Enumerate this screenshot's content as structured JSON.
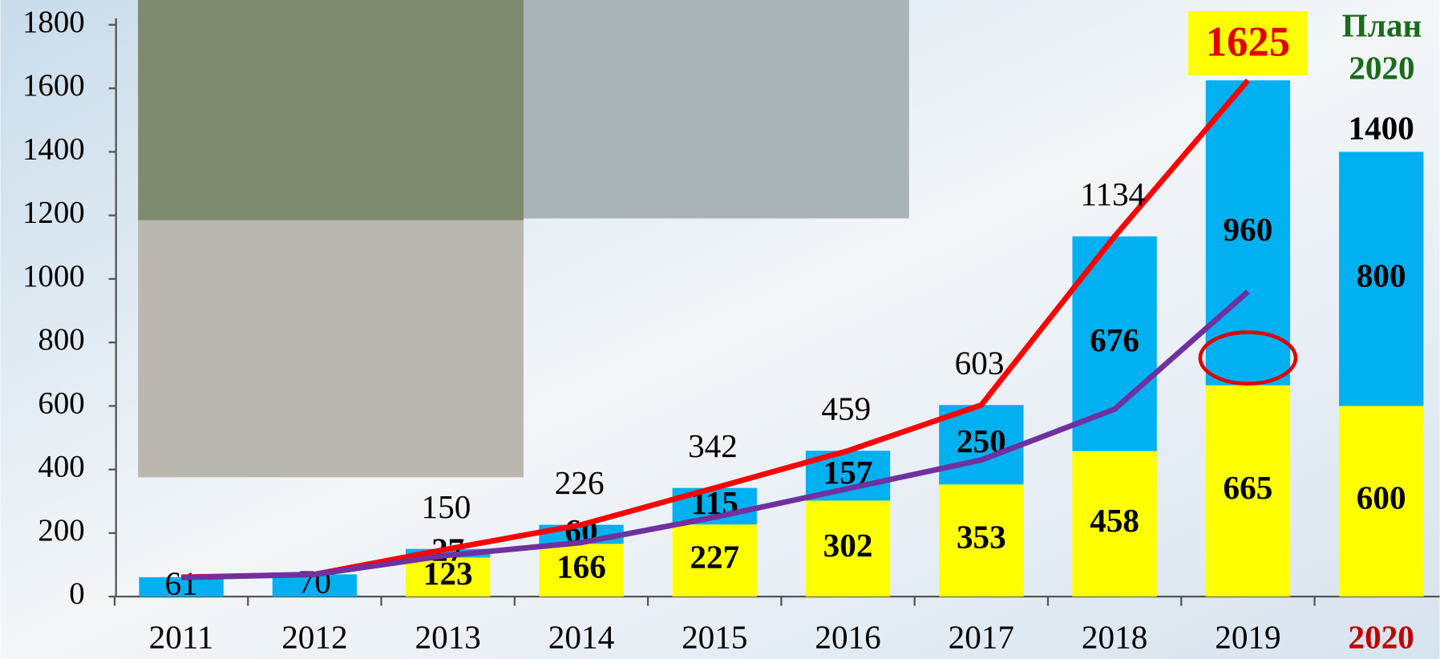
{
  "chart_data": {
    "type": "bar",
    "categories": [
      "2011",
      "2012",
      "2013",
      "2014",
      "2015",
      "2016",
      "2017",
      "2018",
      "2019",
      "2020"
    ],
    "series": [
      {
        "color": "#ffff00",
        "values": [
          null,
          null,
          123,
          166,
          227,
          302,
          353,
          458,
          665,
          600
        ]
      },
      {
        "color": "#00b0f0",
        "values": [
          61,
          70,
          27,
          60,
          115,
          157,
          250,
          676,
          960,
          800
        ]
      }
    ],
    "lines": [
      {
        "color": "#ff0000",
        "values": [
          61,
          70,
          150,
          226,
          342,
          459,
          603,
          1134,
          1625,
          null
        ]
      },
      {
        "color": "#7030a0",
        "values": [
          60,
          70,
          130,
          170,
          250,
          340,
          430,
          590,
          960,
          null
        ]
      }
    ],
    "plan_title": "План 2020",
    "plan_total": 1400,
    "ylim": [
      0,
      1800
    ],
    "yticks": [
      0,
      200,
      400,
      600,
      800,
      1000,
      1200,
      1400,
      1600,
      1800
    ]
  }
}
